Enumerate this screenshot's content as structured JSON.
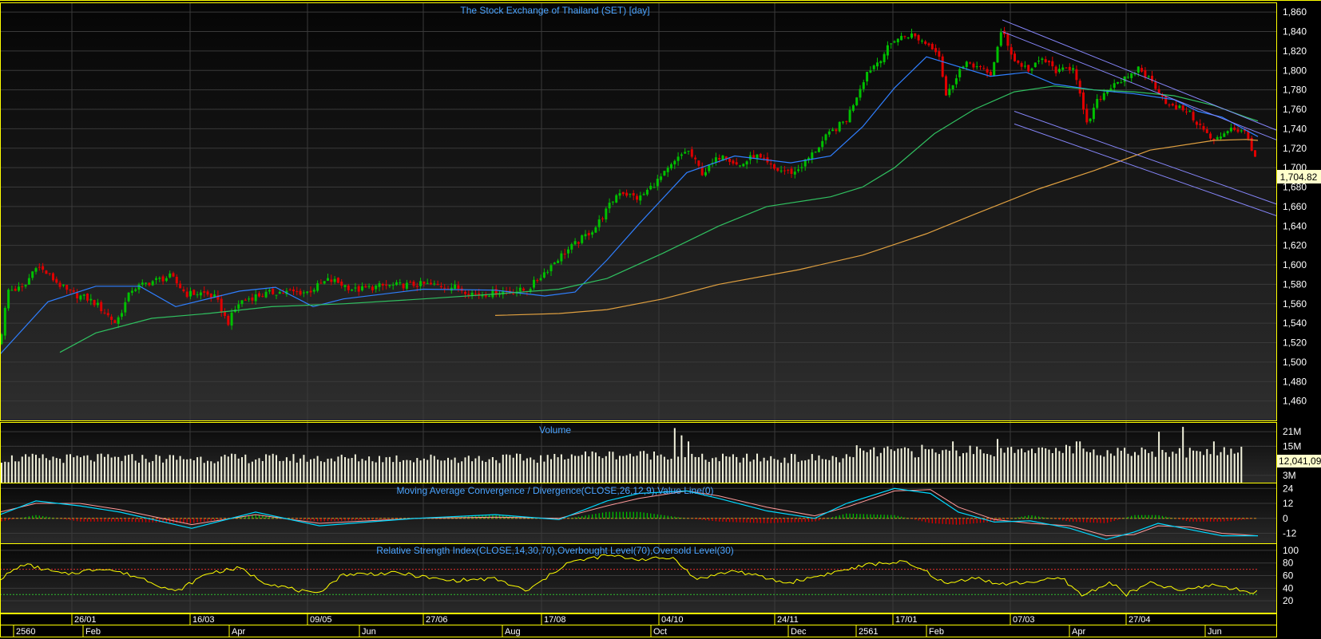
{
  "colors": {
    "background": "#000000",
    "panel_bg": "#232323",
    "frame": "#ffff00",
    "grid": "#3a3a3a",
    "up_candle": "#00c000",
    "down_candle": "#e00000",
    "ma_fast": "#2f7fff",
    "ma_mid": "#30c060",
    "ma_slow": "#e0a040",
    "channel": "#8888ff",
    "volume": "#f2f2dc",
    "macd_line": "#00d8ff",
    "signal_line": "#ff9a9a",
    "rsi": "#ffff00",
    "title_text": "#4aa3ff",
    "axis_text": "#ffffff",
    "last_tag_bg": "#ffffcc"
  },
  "chart_data": [
    {
      "id": "price",
      "type": "candlestick",
      "title": "The Stock Exchange of Thailand (SET) [day]",
      "ylim": [
        1440,
        1870
      ],
      "yticks": [
        "1,460",
        "1,480",
        "1,500",
        "1,520",
        "1,540",
        "1,560",
        "1,580",
        "1,600",
        "1,620",
        "1,640",
        "1,660",
        "1,680",
        "1,700",
        "1,720",
        "1,740",
        "1,760",
        "1,780",
        "1,800",
        "1,820",
        "1,840",
        "1,860"
      ],
      "last_value": "1,704.82",
      "anchors": [
        [
          0,
          1520
        ],
        [
          10,
          1574
        ],
        [
          30,
          1576
        ],
        [
          45,
          1600
        ],
        [
          60,
          1590
        ],
        [
          85,
          1572
        ],
        [
          110,
          1565
        ],
        [
          120,
          1560
        ],
        [
          145,
          1540
        ],
        [
          165,
          1575
        ],
        [
          190,
          1583
        ],
        [
          214,
          1588
        ],
        [
          233,
          1570
        ],
        [
          255,
          1571
        ],
        [
          270,
          1566
        ],
        [
          285,
          1540
        ],
        [
          300,
          1562
        ],
        [
          320,
          1568
        ],
        [
          345,
          1572
        ],
        [
          385,
          1572
        ],
        [
          410,
          1584
        ],
        [
          420,
          1583
        ],
        [
          445,
          1574
        ],
        [
          475,
          1578
        ],
        [
          500,
          1579
        ],
        [
          530,
          1580
        ],
        [
          570,
          1577
        ],
        [
          598,
          1569
        ],
        [
          620,
          1572
        ],
        [
          660,
          1574
        ],
        [
          700,
          1608
        ],
        [
          745,
          1638
        ],
        [
          775,
          1676
        ],
        [
          800,
          1668
        ],
        [
          830,
          1692
        ],
        [
          860,
          1719
        ],
        [
          880,
          1694
        ],
        [
          905,
          1715
        ],
        [
          925,
          1701
        ],
        [
          945,
          1713
        ],
        [
          970,
          1698
        ],
        [
          995,
          1695
        ],
        [
          1015,
          1712
        ],
        [
          1035,
          1732
        ],
        [
          1060,
          1750
        ],
        [
          1085,
          1798
        ],
        [
          1100,
          1810
        ],
        [
          1120,
          1832
        ],
        [
          1140,
          1837
        ],
        [
          1160,
          1828
        ],
        [
          1175,
          1820
        ],
        [
          1185,
          1772
        ],
        [
          1200,
          1800
        ],
        [
          1215,
          1808
        ],
        [
          1240,
          1795
        ],
        [
          1255,
          1842
        ],
        [
          1270,
          1810
        ],
        [
          1290,
          1800
        ],
        [
          1305,
          1812
        ],
        [
          1325,
          1798
        ],
        [
          1345,
          1805
        ],
        [
          1360,
          1742
        ],
        [
          1375,
          1770
        ],
        [
          1395,
          1788
        ],
        [
          1415,
          1792
        ],
        [
          1425,
          1803
        ],
        [
          1445,
          1786
        ],
        [
          1465,
          1762
        ],
        [
          1485,
          1760
        ],
        [
          1500,
          1745
        ],
        [
          1520,
          1726
        ],
        [
          1540,
          1742
        ],
        [
          1560,
          1735
        ],
        [
          1575,
          1705
        ]
      ],
      "ma_series": [
        {
          "key": "ma_fast",
          "anchors": [
            [
              0,
              1508
            ],
            [
              60,
              1562
            ],
            [
              120,
              1578
            ],
            [
              175,
              1578
            ],
            [
              220,
              1557
            ],
            [
              300,
              1573
            ],
            [
              345,
              1577
            ],
            [
              392,
              1557
            ],
            [
              430,
              1565
            ],
            [
              530,
              1575
            ],
            [
              620,
              1574
            ],
            [
              682,
              1568
            ],
            [
              720,
              1572
            ],
            [
              760,
              1605
            ],
            [
              800,
              1642
            ],
            [
              860,
              1695
            ],
            [
              920,
              1712
            ],
            [
              990,
              1705
            ],
            [
              1040,
              1712
            ],
            [
              1080,
              1742
            ],
            [
              1120,
              1782
            ],
            [
              1160,
              1814
            ],
            [
              1200,
              1804
            ],
            [
              1240,
              1794
            ],
            [
              1285,
              1798
            ],
            [
              1320,
              1786
            ],
            [
              1370,
              1780
            ],
            [
              1420,
              1776
            ],
            [
              1470,
              1770
            ],
            [
              1500,
              1758
            ],
            [
              1530,
              1752
            ],
            [
              1575,
              1732
            ]
          ]
        },
        {
          "key": "ma_mid",
          "anchors": [
            [
              75,
              1510
            ],
            [
              120,
              1530
            ],
            [
              190,
              1545
            ],
            [
              260,
              1550
            ],
            [
              340,
              1557
            ],
            [
              430,
              1560
            ],
            [
              530,
              1565
            ],
            [
              620,
              1570
            ],
            [
              700,
              1575
            ],
            [
              760,
              1586
            ],
            [
              830,
              1612
            ],
            [
              900,
              1640
            ],
            [
              960,
              1660
            ],
            [
              1040,
              1670
            ],
            [
              1080,
              1680
            ],
            [
              1120,
              1700
            ],
            [
              1170,
              1735
            ],
            [
              1220,
              1760
            ],
            [
              1270,
              1778
            ],
            [
              1320,
              1784
            ],
            [
              1370,
              1780
            ],
            [
              1420,
              1778
            ],
            [
              1470,
              1774
            ],
            [
              1520,
              1764
            ],
            [
              1560,
              1752
            ],
            [
              1575,
              1748
            ]
          ]
        },
        {
          "key": "ma_slow",
          "anchors": [
            [
              620,
              1548
            ],
            [
              700,
              1550
            ],
            [
              760,
              1554
            ],
            [
              830,
              1565
            ],
            [
              900,
              1580
            ],
            [
              1000,
              1595
            ],
            [
              1080,
              1610
            ],
            [
              1160,
              1632
            ],
            [
              1220,
              1652
            ],
            [
              1300,
              1678
            ],
            [
              1370,
              1697
            ],
            [
              1440,
              1718
            ],
            [
              1520,
              1728
            ],
            [
              1560,
              1729
            ],
            [
              1575,
              1728
            ]
          ]
        }
      ],
      "channel_lines": [
        [
          [
            1255,
            1852
          ],
          [
            1600,
            1738
          ]
        ],
        [
          [
            1255,
            1840
          ],
          [
            1600,
            1728
          ]
        ],
        [
          [
            1270,
            1758
          ],
          [
            1600,
            1662
          ]
        ],
        [
          [
            1270,
            1745
          ],
          [
            1600,
            1650
          ]
        ]
      ]
    },
    {
      "id": "volume",
      "type": "bar",
      "title": "Volume",
      "ylim": [
        0,
        25
      ],
      "yticks": [
        "3M",
        "15M",
        "21M"
      ],
      "last_value": "12,041,09",
      "spikes": [
        [
          845,
          22.5
        ],
        [
          852,
          19.5
        ],
        [
          861,
          17
        ],
        [
          1195,
          17
        ],
        [
          1250,
          18
        ],
        [
          1290,
          14
        ],
        [
          1350,
          17
        ],
        [
          1450,
          21
        ],
        [
          1480,
          23
        ],
        [
          1520,
          17
        ]
      ]
    },
    {
      "id": "macd",
      "type": "line",
      "title": "Moving Average Convergence / Divergence(CLOSE,26,12,9),Value Line(0)",
      "ylim": [
        -20,
        28
      ],
      "yticks": [
        "24",
        "12",
        "0",
        "-12"
      ],
      "macd_anchors": [
        [
          0,
          3
        ],
        [
          45,
          14
        ],
        [
          100,
          10
        ],
        [
          150,
          5
        ],
        [
          240,
          -8
        ],
        [
          320,
          5
        ],
        [
          400,
          -6
        ],
        [
          520,
          0
        ],
        [
          620,
          3
        ],
        [
          700,
          -1
        ],
        [
          760,
          14
        ],
        [
          800,
          20
        ],
        [
          860,
          22
        ],
        [
          900,
          16
        ],
        [
          960,
          6
        ],
        [
          1020,
          0
        ],
        [
          1060,
          12
        ],
        [
          1120,
          24
        ],
        [
          1165,
          20
        ],
        [
          1200,
          5
        ],
        [
          1245,
          -3
        ],
        [
          1290,
          -2
        ],
        [
          1340,
          -8
        ],
        [
          1385,
          -17
        ],
        [
          1420,
          -11
        ],
        [
          1450,
          -4
        ],
        [
          1490,
          -9
        ],
        [
          1530,
          -14
        ],
        [
          1575,
          -14
        ]
      ],
      "signal_anchors": [
        [
          0,
          5
        ],
        [
          45,
          12
        ],
        [
          100,
          12
        ],
        [
          150,
          7
        ],
        [
          240,
          -5
        ],
        [
          320,
          3
        ],
        [
          400,
          -4
        ],
        [
          520,
          0
        ],
        [
          620,
          1
        ],
        [
          700,
          0
        ],
        [
          760,
          10
        ],
        [
          800,
          16
        ],
        [
          860,
          22
        ],
        [
          900,
          18
        ],
        [
          960,
          9
        ],
        [
          1020,
          2
        ],
        [
          1060,
          9
        ],
        [
          1120,
          22
        ],
        [
          1165,
          23
        ],
        [
          1200,
          9
        ],
        [
          1245,
          -1
        ],
        [
          1290,
          -4
        ],
        [
          1340,
          -6
        ],
        [
          1385,
          -14
        ],
        [
          1420,
          -13
        ],
        [
          1450,
          -6
        ],
        [
          1490,
          -7
        ],
        [
          1530,
          -12
        ],
        [
          1575,
          -14
        ]
      ]
    },
    {
      "id": "rsi",
      "type": "line",
      "title": "Relative Strength Index(CLOSE,14,30,70),Overbought Level(70),Oversold Level(30)",
      "ylim": [
        0,
        110
      ],
      "yticks": [
        "20",
        "40",
        "60",
        "80",
        "100"
      ],
      "overbought": 70,
      "oversold": 30,
      "anchors": [
        [
          0,
          55
        ],
        [
          30,
          78
        ],
        [
          80,
          62
        ],
        [
          130,
          72
        ],
        [
          180,
          55
        ],
        [
          220,
          34
        ],
        [
          260,
          64
        ],
        [
          300,
          72
        ],
        [
          330,
          50
        ],
        [
          395,
          30
        ],
        [
          430,
          62
        ],
        [
          500,
          64
        ],
        [
          560,
          52
        ],
        [
          620,
          55
        ],
        [
          660,
          35
        ],
        [
          710,
          80
        ],
        [
          760,
          92
        ],
        [
          800,
          86
        ],
        [
          845,
          88
        ],
        [
          870,
          54
        ],
        [
          920,
          68
        ],
        [
          985,
          48
        ],
        [
          1040,
          64
        ],
        [
          1090,
          78
        ],
        [
          1130,
          82
        ],
        [
          1160,
          66
        ],
        [
          1185,
          46
        ],
        [
          1220,
          58
        ],
        [
          1250,
          46
        ],
        [
          1290,
          50
        ],
        [
          1330,
          56
        ],
        [
          1355,
          28
        ],
        [
          1390,
          50
        ],
        [
          1410,
          30
        ],
        [
          1440,
          48
        ],
        [
          1480,
          36
        ],
        [
          1520,
          46
        ],
        [
          1555,
          36
        ],
        [
          1575,
          34
        ]
      ]
    }
  ],
  "x_axis": {
    "upper_labels": [
      [
        "26/01",
        90
      ],
      [
        "16/03",
        238
      ],
      [
        "09/05",
        385
      ],
      [
        "27/06",
        530
      ],
      [
        "17/08",
        678
      ],
      [
        "04/10",
        825
      ],
      [
        "24/11",
        970
      ],
      [
        "17/01",
        1118
      ],
      [
        "07/03",
        1265
      ],
      [
        "27/04",
        1410
      ]
    ],
    "lower_labels": [
      [
        "2560",
        20
      ],
      [
        "Feb",
        107
      ],
      [
        "Apr",
        290
      ],
      [
        "Jun",
        453
      ],
      [
        "Aug",
        632
      ],
      [
        "Oct",
        818
      ],
      [
        "Dec",
        990
      ],
      [
        "2561",
        1075
      ],
      [
        "Feb",
        1163
      ],
      [
        "Apr",
        1342
      ],
      [
        "Jun",
        1512
      ]
    ]
  }
}
